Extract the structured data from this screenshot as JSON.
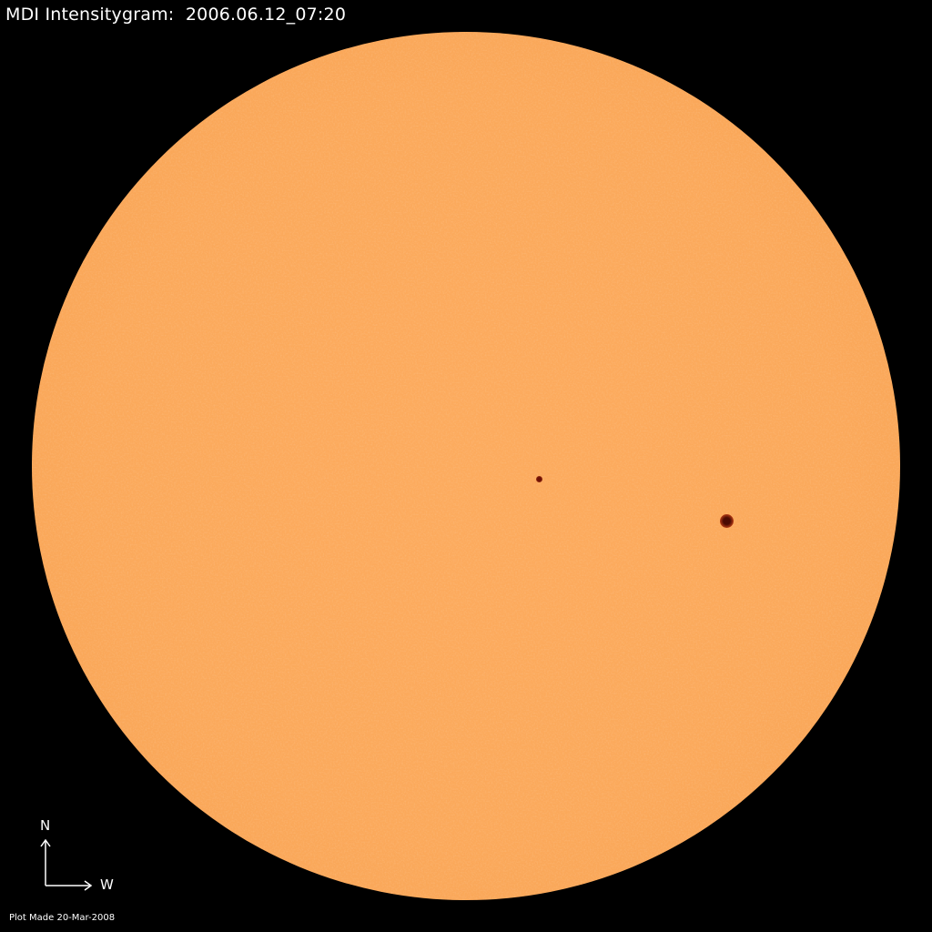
{
  "title": "MDI Intensitygram:  2006.06.12_07:20",
  "compass": {
    "north": "N",
    "west": "W"
  },
  "footer": "Plot Made 20-Mar-2008",
  "colors": {
    "background": "#000000",
    "disk": "#fba95b",
    "sunspot": "#8a1a08"
  },
  "sunspots": [
    {
      "name": "sunspot-small",
      "size": "small"
    },
    {
      "name": "sunspot-large",
      "size": "large"
    }
  ]
}
